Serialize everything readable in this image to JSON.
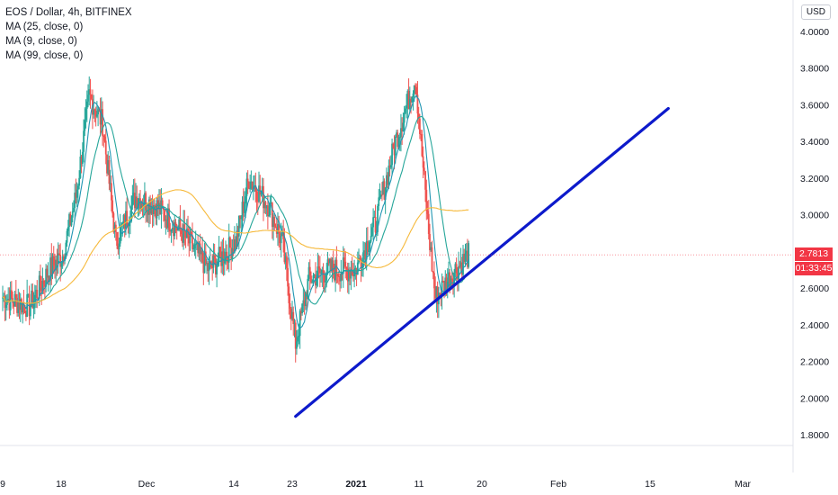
{
  "chart_data": {
    "type": "candlestick",
    "symbol_title": "EOS / Dollar, 4h, BITFINEX",
    "indicators": [
      {
        "name": "MA (25, close, 0)",
        "color": "#26a69a"
      },
      {
        "name": "MA (9, close, 0)",
        "color": "#2196b3"
      },
      {
        "name": "MA (99, close, 0)",
        "color": "#f6b93b"
      }
    ],
    "currency": "USD",
    "y_ticks": [
      "4.0000",
      "3.8000",
      "3.6000",
      "3.4000",
      "3.2000",
      "3.0000",
      "2.6000",
      "2.4000",
      "2.2000",
      "2.0000",
      "1.8000"
    ],
    "ylim": [
      1.7,
      4.05
    ],
    "x_ticks": [
      {
        "label": "9",
        "bold": false
      },
      {
        "label": "18",
        "bold": false
      },
      {
        "label": "Dec",
        "bold": false
      },
      {
        "label": "14",
        "bold": false
      },
      {
        "label": "23",
        "bold": false
      },
      {
        "label": "2021",
        "bold": true
      },
      {
        "label": "11",
        "bold": false
      },
      {
        "label": "20",
        "bold": false
      },
      {
        "label": "Feb",
        "bold": false
      },
      {
        "label": "15",
        "bold": false
      },
      {
        "label": "Mar",
        "bold": false
      }
    ],
    "price_series": [
      [
        "Nov 9",
        2.55
      ],
      [
        "Nov 13",
        2.5
      ],
      [
        "Nov 16",
        2.7
      ],
      [
        "Nov 18",
        2.78
      ],
      [
        "Nov 20",
        3.1
      ],
      [
        "Nov 22",
        3.65
      ],
      [
        "Nov 24",
        3.5
      ],
      [
        "Nov 26",
        2.85
      ],
      [
        "Nov 29",
        3.1
      ],
      [
        "Dec 2",
        3.05
      ],
      [
        "Dec 6",
        2.9
      ],
      [
        "Dec 10",
        2.7
      ],
      [
        "Dec 14",
        2.85
      ],
      [
        "Dec 16",
        3.2
      ],
      [
        "Dec 19",
        3.05
      ],
      [
        "Dec 21",
        2.85
      ],
      [
        "Dec 23",
        2.3
      ],
      [
        "Dec 25",
        2.65
      ],
      [
        "Dec 28",
        2.7
      ],
      [
        "Jan 1",
        2.7
      ],
      [
        "Jan 4",
        2.95
      ],
      [
        "Jan 7",
        3.4
      ],
      [
        "Jan 10",
        3.75
      ],
      [
        "Jan 12",
        2.9
      ],
      [
        "Jan 13",
        2.55
      ],
      [
        "Jan 16",
        2.7
      ],
      [
        "Jan 18",
        2.78
      ]
    ],
    "last_price": "2.7813",
    "countdown": "01:33:45",
    "drawn_trendline": {
      "from": [
        "Dec 23",
        1.9
      ],
      "to": [
        "Feb 17",
        3.58
      ],
      "color": "#0d1acb"
    },
    "price_line_color": "#f23645",
    "grid": false,
    "legend_position": "top-left"
  }
}
